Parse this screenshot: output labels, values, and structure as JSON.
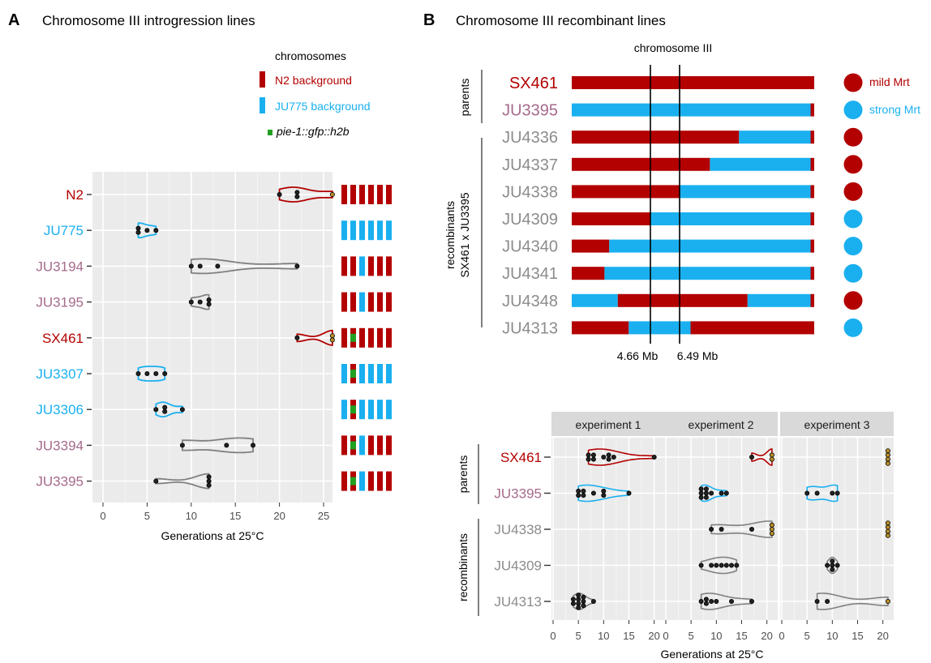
{
  "colors": {
    "n2": "#B30000",
    "ju775": "#1AB0F0",
    "recomb_label": "#A56A8C",
    "grey_label": "#8C8C8C",
    "gfp": "#22A022",
    "panel_bg": "#EBEBEB",
    "strip_bg": "#D9D9D9",
    "dot_fill": "#222222",
    "censored_fill": "#B9902A"
  },
  "panelA": {
    "letter": "A",
    "title": "Chromosome III introgression lines",
    "legend": {
      "title": "chromosomes",
      "items": [
        "N2 background",
        "JU775 background",
        "pie-1::gfp::h2b"
      ]
    },
    "xlabel": "Generations at 25°C",
    "xticks": [
      "0",
      "5",
      "10",
      "15",
      "20",
      "25"
    ]
  },
  "panelB": {
    "letter": "B",
    "title": "Chromosome III recombinant lines",
    "chrom_label": "chromosome III",
    "markers": [
      "4.66 Mb",
      "6.49 Mb"
    ],
    "group_parents": "parents",
    "group_recomb_line1": "recombinants",
    "group_recomb_line2": "SX461 x JU3395",
    "legend": [
      "mild Mrt",
      "strong Mrt"
    ]
  },
  "panelC": {
    "facets": [
      "experiment 1",
      "experiment 2",
      "experiment 3"
    ],
    "group_parents": "parents",
    "group_recomb": "recombinants",
    "xlabel": "Generations at 25°C",
    "xticks": [
      "0",
      "5",
      "10",
      "15",
      "20"
    ]
  },
  "chart_data": [
    {
      "type": "violin",
      "title": "Chromosome III introgression lines",
      "xlabel": "Generations at 25°C",
      "xlim": [
        0,
        27
      ],
      "strains": [
        {
          "name": "N2",
          "color": "n2",
          "values": [
            20,
            22,
            22,
            26
          ],
          "censored": [
            26
          ],
          "chrom": [
            "N",
            "N",
            "N",
            "N",
            "N",
            "N"
          ]
        },
        {
          "name": "JU775",
          "color": "ju775",
          "values": [
            4,
            4,
            5,
            6
          ],
          "censored": [],
          "chrom": [
            "J",
            "J",
            "J",
            "J",
            "J",
            "J"
          ]
        },
        {
          "name": "JU3194",
          "color": "recomb",
          "values": [
            10,
            11,
            13,
            22
          ],
          "censored": [],
          "chrom": [
            "N",
            "N",
            "J",
            "N",
            "N",
            "N"
          ]
        },
        {
          "name": "JU3195",
          "color": "recomb",
          "values": [
            10,
            11,
            12,
            12
          ],
          "censored": [],
          "chrom": [
            "N",
            "N",
            "J",
            "N",
            "N",
            "N"
          ]
        },
        {
          "name": "SX461",
          "color": "n2",
          "values": [
            22,
            26,
            26
          ],
          "censored": [
            26,
            26
          ],
          "chrom": [
            "N",
            "G",
            "N",
            "N",
            "N",
            "N"
          ]
        },
        {
          "name": "JU3307",
          "color": "ju775",
          "values": [
            4,
            5,
            6,
            7
          ],
          "censored": [],
          "chrom": [
            "J",
            "G",
            "J",
            "J",
            "J",
            "J"
          ]
        },
        {
          "name": "JU3306",
          "color": "ju775",
          "values": [
            6,
            7,
            7,
            9
          ],
          "censored": [],
          "chrom": [
            "J",
            "G",
            "J",
            "J",
            "J",
            "J"
          ]
        },
        {
          "name": "JU3394",
          "color": "recomb",
          "values": [
            9,
            14,
            17
          ],
          "censored": [],
          "chrom": [
            "N",
            "G",
            "J",
            "N",
            "N",
            "N"
          ]
        },
        {
          "name": "JU3395",
          "color": "recomb",
          "values": [
            6,
            12,
            12,
            12
          ],
          "censored": [],
          "chrom": [
            "N",
            "G",
            "J",
            "N",
            "N",
            "N"
          ]
        }
      ]
    },
    {
      "type": "genotype-bars",
      "title": "Chromosome III recombinant lines",
      "marker_positions_mb": [
        4.66,
        6.49
      ],
      "lines": [
        {
          "name": "SX461",
          "label_color": "n2",
          "phenotype": "mild Mrt",
          "segments": [
            {
              "from": 0,
              "to": 1,
              "geno": "N"
            }
          ]
        },
        {
          "name": "JU3395",
          "label_color": "recomb",
          "phenotype": "strong Mrt",
          "segments": [
            {
              "from": 0,
              "to": 0.985,
              "geno": "J"
            },
            {
              "from": 0.985,
              "to": 1,
              "geno": "N"
            }
          ]
        },
        {
          "name": "JU4336",
          "label_color": "grey",
          "phenotype": "mild Mrt",
          "segments": [
            {
              "from": 0,
              "to": 0.69,
              "geno": "N"
            },
            {
              "from": 0.69,
              "to": 0.985,
              "geno": "J"
            },
            {
              "from": 0.985,
              "to": 1,
              "geno": "N"
            }
          ]
        },
        {
          "name": "JU4337",
          "label_color": "grey",
          "phenotype": "mild Mrt",
          "segments": [
            {
              "from": 0,
              "to": 0.57,
              "geno": "N"
            },
            {
              "from": 0.57,
              "to": 0.985,
              "geno": "J"
            },
            {
              "from": 0.985,
              "to": 1,
              "geno": "N"
            }
          ]
        },
        {
          "name": "JU4338",
          "label_color": "grey",
          "phenotype": "mild Mrt",
          "segments": [
            {
              "from": 0,
              "to": 0.445,
              "geno": "N"
            },
            {
              "from": 0.445,
              "to": 0.985,
              "geno": "J"
            },
            {
              "from": 0.985,
              "to": 1,
              "geno": "N"
            }
          ]
        },
        {
          "name": "JU4309",
          "label_color": "grey",
          "phenotype": "strong Mrt",
          "segments": [
            {
              "from": 0,
              "to": 0.325,
              "geno": "N"
            },
            {
              "from": 0.325,
              "to": 0.985,
              "geno": "J"
            },
            {
              "from": 0.985,
              "to": 1,
              "geno": "N"
            }
          ]
        },
        {
          "name": "JU4340",
          "label_color": "grey",
          "phenotype": "strong Mrt",
          "segments": [
            {
              "from": 0,
              "to": 0.155,
              "geno": "N"
            },
            {
              "from": 0.155,
              "to": 0.985,
              "geno": "J"
            },
            {
              "from": 0.985,
              "to": 1,
              "geno": "N"
            }
          ]
        },
        {
          "name": "JU4341",
          "label_color": "grey",
          "phenotype": "strong Mrt",
          "segments": [
            {
              "from": 0,
              "to": 0.135,
              "geno": "N"
            },
            {
              "from": 0.135,
              "to": 0.985,
              "geno": "J"
            },
            {
              "from": 0.985,
              "to": 1,
              "geno": "N"
            }
          ]
        },
        {
          "name": "JU4348",
          "label_color": "grey",
          "phenotype": "mild Mrt",
          "segments": [
            {
              "from": 0,
              "to": 0.19,
              "geno": "J"
            },
            {
              "from": 0.19,
              "to": 0.725,
              "geno": "N"
            },
            {
              "from": 0.725,
              "to": 0.985,
              "geno": "J"
            },
            {
              "from": 0.985,
              "to": 1,
              "geno": "N"
            }
          ]
        },
        {
          "name": "JU4313",
          "label_color": "grey",
          "phenotype": "strong Mrt",
          "segments": [
            {
              "from": 0,
              "to": 0.235,
              "geno": "N"
            },
            {
              "from": 0.235,
              "to": 0.49,
              "geno": "J"
            },
            {
              "from": 0.49,
              "to": 1,
              "geno": "N"
            }
          ]
        }
      ]
    },
    {
      "type": "violin-facets",
      "xlabel": "Generations at 25°C",
      "xlim": [
        0,
        21.5
      ],
      "strains": [
        {
          "name": "SX461",
          "color": "n2",
          "group": "parents"
        },
        {
          "name": "JU3395",
          "color": "ju775_recomb",
          "group": "parents"
        },
        {
          "name": "JU4338",
          "color": "grey",
          "group": "recombinants"
        },
        {
          "name": "JU4309",
          "color": "grey",
          "group": "recombinants"
        },
        {
          "name": "JU4313",
          "color": "grey",
          "group": "recombinants"
        }
      ],
      "experiments": [
        {
          "name": "experiment 1",
          "data": {
            "SX461": {
              "values": [
                7,
                7,
                8,
                8,
                10,
                11,
                11,
                12,
                20
              ],
              "censored": []
            },
            "JU3395": {
              "values": [
                5,
                5,
                6,
                6,
                8,
                10,
                10,
                15
              ],
              "censored": []
            },
            "JU4313": {
              "values": [
                4,
                4,
                5,
                5,
                5,
                5,
                6,
                6,
                6,
                8
              ],
              "censored": []
            }
          }
        },
        {
          "name": "experiment 2",
          "data": {
            "SX461": {
              "values": [
                17,
                21,
                21
              ],
              "censored": [
                21,
                21
              ]
            },
            "JU3395": {
              "values": [
                7,
                7,
                7,
                8,
                8,
                8,
                9,
                11,
                12
              ],
              "censored": []
            },
            "JU4338": {
              "values": [
                9,
                11,
                17,
                21,
                21,
                21
              ],
              "censored": [
                21,
                21,
                21
              ]
            },
            "JU4309": {
              "values": [
                7,
                9,
                10,
                11,
                12,
                13,
                14
              ],
              "censored": []
            },
            "JU4313": {
              "values": [
                7,
                8,
                8,
                9,
                10,
                13,
                17
              ],
              "censored": []
            }
          }
        },
        {
          "name": "experiment 3",
          "data": {
            "SX461": {
              "values": [
                21,
                21,
                21,
                21
              ],
              "censored": [
                21,
                21,
                21,
                21
              ]
            },
            "JU3395": {
              "values": [
                5,
                7,
                10,
                11
              ],
              "censored": []
            },
            "JU4338": {
              "values": [
                21,
                21,
                21,
                21
              ],
              "censored": [
                21,
                21,
                21,
                21
              ]
            },
            "JU4309": {
              "values": [
                9,
                10,
                10,
                10,
                11
              ],
              "censored": []
            },
            "JU4313": {
              "values": [
                7,
                9,
                21
              ],
              "censored": [
                21
              ]
            }
          }
        }
      ]
    }
  ]
}
